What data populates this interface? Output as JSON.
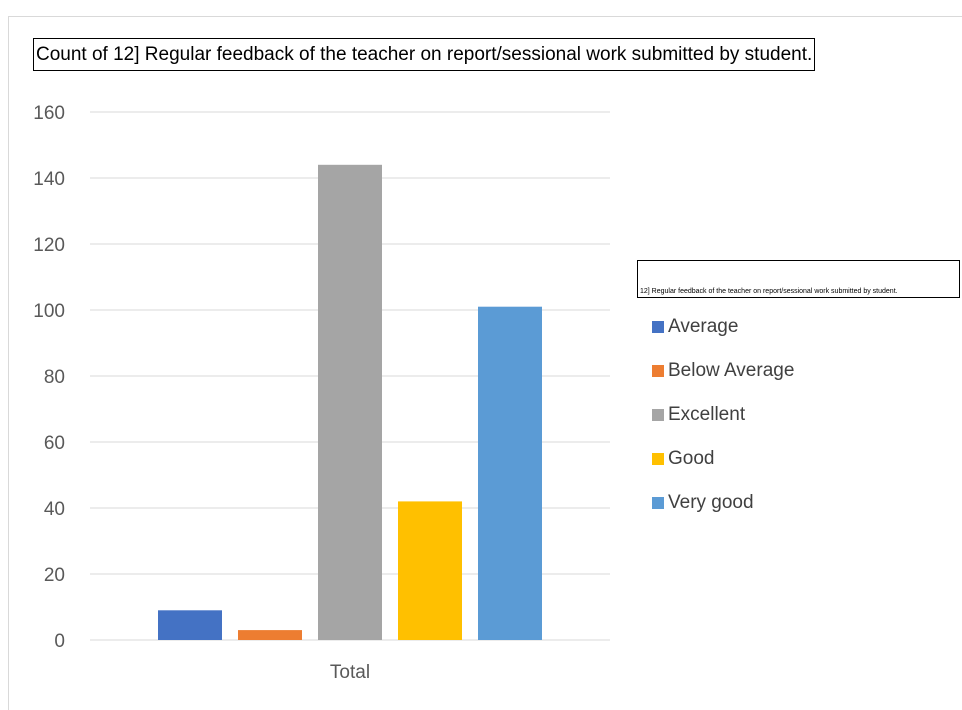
{
  "chart_data": {
    "type": "bar",
    "title": "Count of 12] Regular feedback of the teacher on report/sessional work submitted by student.",
    "legend_title": "12] Regular feedback of the teacher on report/sessional work submitted by student.",
    "categories": [
      "Total"
    ],
    "series": [
      {
        "name": "Average",
        "values": [
          9
        ],
        "color": "#4472c4"
      },
      {
        "name": "Below Average",
        "values": [
          3
        ],
        "color": "#ed7d31"
      },
      {
        "name": "Excellent",
        "values": [
          144
        ],
        "color": "#a5a5a5"
      },
      {
        "name": "Good",
        "values": [
          42
        ],
        "color": "#ffc000"
      },
      {
        "name": "Very good",
        "values": [
          101
        ],
        "color": "#5b9bd5"
      }
    ],
    "ylim": [
      0,
      160
    ],
    "yticks": [
      0,
      20,
      40,
      60,
      80,
      100,
      120,
      140,
      160
    ],
    "xlabel": "",
    "ylabel": "",
    "grid": true,
    "legend_position": "right"
  }
}
